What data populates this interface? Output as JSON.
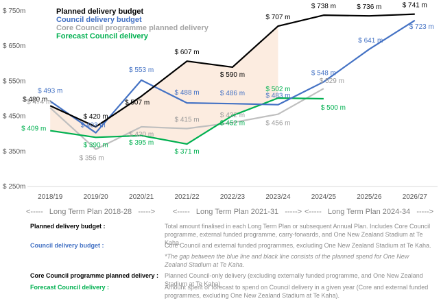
{
  "chart_data": {
    "type": "line",
    "title": "",
    "xlabel": "",
    "ylabel": "",
    "categories": [
      "2018/19",
      "2019/20",
      "2020/21",
      "2021/22",
      "2022/23",
      "2023/24",
      "2024/25",
      "2025/26",
      "2026/27"
    ],
    "ylim": [
      250,
      750
    ],
    "yticks": [
      {
        "value": 250,
        "label": "$ 250m"
      },
      {
        "value": 350,
        "label": "$ 350m"
      },
      {
        "value": 450,
        "label": "$ 450m"
      },
      {
        "value": 550,
        "label": "$ 550m"
      },
      {
        "value": 650,
        "label": "$ 650m"
      },
      {
        "value": 750,
        "label": "$ 750m"
      }
    ],
    "series": [
      {
        "name": "Planned delivery budget",
        "color": "#000000",
        "values": [
          480,
          420,
          507,
          607,
          590,
          707,
          738,
          736,
          741
        ],
        "labels": [
          "$ 480 m",
          "$ 420 m",
          "$ 507 m",
          "$ 607 m",
          "$ 590 m",
          "$ 707 m",
          "$ 738 m",
          "$ 736 m",
          "$ 741 m"
        ]
      },
      {
        "name": "Council delivery budget",
        "color": "#4472C4",
        "values": [
          493,
          403,
          553,
          488,
          486,
          483,
          548,
          641,
          723
        ],
        "labels": [
          "$ 493 m",
          "$ 403 m",
          "$ 553 m",
          "$ 488 m",
          "$ 486 m",
          "$ 483 m",
          "$ 548 m",
          "$ 641 m",
          "$ 723 m"
        ]
      },
      {
        "name": "Core Council programme planned delivery",
        "color": "#BFBFBF",
        "values": [
          474,
          356,
          420,
          415,
          432,
          456,
          529,
          null,
          null
        ],
        "labels": [
          "$ 474 m",
          "$ 356 m",
          "$ 420 m",
          "$ 415 m",
          "$ 432 m",
          "$ 456 m",
          "$ 529 m",
          null,
          null
        ]
      },
      {
        "name": "Forecast Council delivery",
        "color": "#00B050",
        "values": [
          409,
          390,
          395,
          371,
          452,
          502,
          500,
          null,
          null
        ],
        "labels": [
          "$ 409 m",
          "$ 390 m",
          "$ 395 m",
          "$ 371 m",
          "$ 452 m",
          "$ 502 m",
          "$ 500 m",
          null,
          null
        ]
      }
    ],
    "legend": {
      "position": "top-left",
      "entries": [
        "Planned delivery budget",
        "Council delivery budget",
        "Core Council programme planned delivery",
        "Forecast Council delivery"
      ]
    }
  },
  "periods": [
    "<-----   Long Term Plan 2018-28   ----->",
    "<-----   Long Term Plan 2021-31   ----->",
    "<-----   Long Term Plan 2024-34   ----->"
  ],
  "descriptions": [
    {
      "key": "Planned delivery budget :",
      "color": "#000000",
      "text": "Total amount finalised in each Long Term Plan or subsequent Annual Plan. Includes Core Council programme, external funded programme, carry-forwards, and One New Zealand Stadium at Te Kaha."
    },
    {
      "key": "Council delivery budget :",
      "color": "#4472C4",
      "text": "Core Council and external funded programmes, excluding One New Zealand Stadium at Te Kaha.",
      "note": "*The gap between the blue line and black line consists of the planned spend for One New Zealand Stadium at Te Kaha."
    },
    {
      "key": "Core Council programme planned delivery :",
      "color": "#000000",
      "text": "Planned Council-only delivery (excluding externally funded programme, and One New Zealand Stadium at Te Kaha)"
    },
    {
      "key": "Forecast Council delivery :",
      "color": "#00B050",
      "text": "Amount spent or forecast to spend on Council delivery in a given year (Core and external funded programmes, excluding One New Zealand Stadium at Te Kaha)."
    }
  ]
}
